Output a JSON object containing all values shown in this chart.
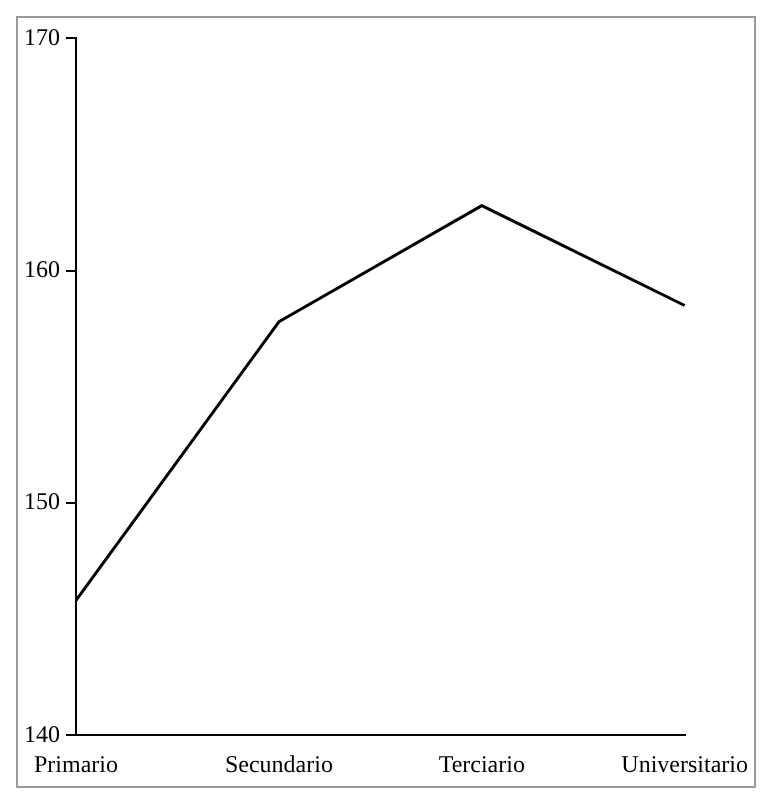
{
  "chart_data": {
    "type": "line",
    "categories": [
      "Primario",
      "Secundario",
      "Terciario",
      "Universitario"
    ],
    "series": [
      {
        "color": "#000000",
        "values": [
          145.8,
          157.8,
          162.8,
          158.5
        ]
      }
    ],
    "ylim": [
      140,
      170
    ],
    "yticks": [
      140,
      150,
      160,
      170
    ],
    "grid": false,
    "legend": false,
    "marker": "none",
    "line_style": "solid"
  }
}
